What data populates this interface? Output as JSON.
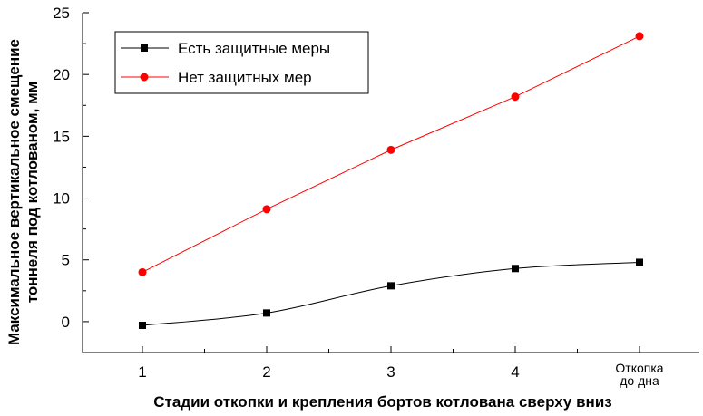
{
  "chart_data": {
    "type": "line",
    "categories": [
      "1",
      "2",
      "3",
      "4",
      "Откопка до дна"
    ],
    "category_lines": [
      [
        "1"
      ],
      [
        "2"
      ],
      [
        "3"
      ],
      [
        "4"
      ],
      [
        "Откопка",
        "до дна"
      ]
    ],
    "x": [
      1,
      2,
      3,
      4,
      5
    ],
    "ylim": [
      -2.5,
      25
    ],
    "yticks": [
      "0",
      "5",
      "10",
      "15",
      "20",
      "25"
    ],
    "ytick_values": [
      0,
      5,
      10,
      15,
      20,
      25
    ],
    "xlabel": "Стадии откопки и крепления бортов котлована сверху вниз",
    "ylabel_lines": [
      "Максимальное вертикальное смещение",
      "тоннеля под котлованом, мм"
    ],
    "grid": false,
    "legend_position": "top-left",
    "series": [
      {
        "name": "Есть защитные меры",
        "values": [
          -0.3,
          0.7,
          2.9,
          4.3,
          4.8
        ],
        "color": "#000000",
        "marker": "square",
        "smooth": true
      },
      {
        "name": "Нет защитных мер",
        "values": [
          4.0,
          9.1,
          13.9,
          18.2,
          23.1
        ],
        "color": "#ff0000",
        "marker": "circle",
        "smooth": false
      }
    ]
  }
}
